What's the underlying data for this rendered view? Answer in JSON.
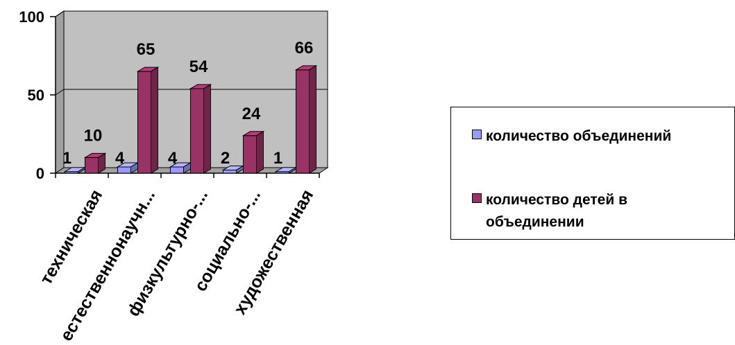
{
  "chart_data": {
    "type": "bar",
    "categories": [
      "техническая",
      "естественнонаучн...",
      "физкультурно-...",
      "социально-...",
      "художественная"
    ],
    "series": [
      {
        "name": "количество объединений",
        "values": [
          1,
          4,
          4,
          2,
          1
        ],
        "color": "#9999ff"
      },
      {
        "name": "количество детей в объединении",
        "values": [
          10,
          65,
          54,
          24,
          66
        ],
        "color": "#993366"
      }
    ],
    "ylim": [
      0,
      100
    ],
    "yticks": [
      "0",
      "50",
      "100"
    ],
    "grid": true,
    "plot_background": "#c0c0c0",
    "legend_position": "right"
  }
}
